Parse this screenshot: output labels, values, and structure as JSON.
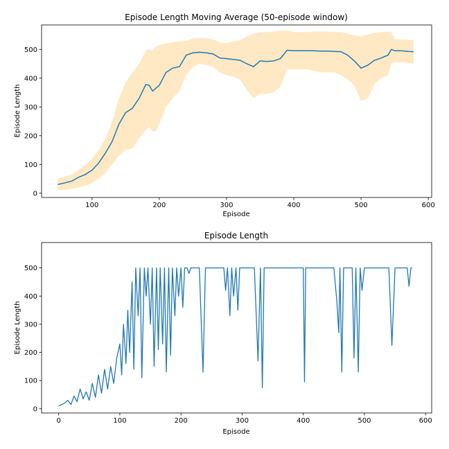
{
  "chart_data": [
    {
      "type": "line",
      "title": "Episode Length Moving Average (50-episode window)",
      "xlabel": "Episode",
      "ylabel": "Episode Length",
      "xlim": [
        25,
        605
      ],
      "ylim": [
        -15,
        585
      ],
      "xticks": [
        100,
        200,
        300,
        400,
        500,
        600
      ],
      "yticks": [
        0,
        100,
        200,
        300,
        400,
        500
      ],
      "line_color": "#1f77b4",
      "band_color": "#ffe8c2",
      "x": [
        49,
        60,
        70,
        80,
        90,
        100,
        110,
        120,
        130,
        140,
        150,
        160,
        170,
        180,
        185,
        190,
        195,
        200,
        210,
        220,
        230,
        240,
        250,
        260,
        270,
        280,
        290,
        300,
        310,
        320,
        330,
        340,
        350,
        360,
        370,
        380,
        390,
        400,
        410,
        420,
        430,
        440,
        450,
        460,
        470,
        480,
        490,
        500,
        510,
        520,
        530,
        540,
        545,
        550,
        560,
        570,
        578
      ],
      "mean": [
        30,
        36,
        42,
        55,
        65,
        80,
        105,
        140,
        180,
        240,
        280,
        295,
        330,
        378,
        375,
        355,
        365,
        375,
        420,
        435,
        440,
        480,
        488,
        490,
        488,
        484,
        470,
        468,
        465,
        462,
        450,
        440,
        460,
        458,
        460,
        468,
        497,
        495,
        495,
        495,
        495,
        494,
        494,
        493,
        492,
        480,
        460,
        435,
        445,
        462,
        470,
        480,
        500,
        495,
        495,
        493,
        492
      ],
      "lower": [
        10,
        12,
        15,
        20,
        25,
        35,
        50,
        70,
        100,
        130,
        150,
        155,
        190,
        220,
        230,
        215,
        215,
        240,
        300,
        330,
        355,
        410,
        440,
        450,
        445,
        440,
        420,
        410,
        405,
        395,
        360,
        330,
        345,
        345,
        350,
        370,
        430,
        430,
        430,
        430,
        425,
        420,
        420,
        420,
        410,
        395,
        375,
        320,
        330,
        380,
        400,
        410,
        450,
        455,
        455,
        452,
        450
      ],
      "upper": [
        50,
        58,
        65,
        80,
        100,
        120,
        150,
        190,
        250,
        330,
        385,
        420,
        450,
        495,
        500,
        495,
        510,
        515,
        520,
        525,
        528,
        530,
        538,
        540,
        538,
        535,
        525,
        522,
        528,
        532,
        545,
        555,
        560,
        560,
        562,
        565,
        565,
        560,
        560,
        560,
        562,
        562,
        562,
        560,
        560,
        555,
        548,
        545,
        552,
        558,
        560,
        562,
        560,
        535,
        535,
        534,
        532
      ]
    },
    {
      "type": "line",
      "title": "Episode Length",
      "xlabel": "Episode",
      "ylabel": "Episode Length",
      "xlim": [
        -28,
        610
      ],
      "ylim": [
        -15,
        590
      ],
      "xticks": [
        0,
        100,
        200,
        300,
        400,
        500,
        600
      ],
      "yticks": [
        0,
        100,
        200,
        300,
        400,
        500
      ],
      "line_color": "#1f77b4",
      "x": [
        0,
        10,
        15,
        20,
        25,
        30,
        35,
        40,
        45,
        50,
        55,
        60,
        65,
        70,
        75,
        80,
        85,
        90,
        95,
        100,
        103,
        106,
        110,
        113,
        116,
        120,
        123,
        126,
        130,
        133,
        136,
        140,
        143,
        146,
        150,
        153,
        156,
        160,
        163,
        166,
        170,
        173,
        176,
        180,
        183,
        186,
        190,
        193,
        196,
        200,
        203,
        206,
        210,
        213,
        216,
        220,
        230,
        236,
        240,
        250,
        260,
        270,
        273,
        276,
        280,
        283,
        286,
        290,
        293,
        296,
        300,
        310,
        320,
        326,
        330,
        333,
        336,
        340,
        350,
        360,
        370,
        380,
        390,
        400,
        402,
        404,
        410,
        420,
        430,
        440,
        450,
        455,
        458,
        460,
        463,
        466,
        470,
        480,
        483,
        486,
        490,
        493,
        496,
        500,
        510,
        520,
        530,
        540,
        545,
        550,
        560,
        570,
        573,
        576,
        578
      ],
      "values": [
        10,
        20,
        30,
        15,
        45,
        25,
        70,
        35,
        60,
        30,
        90,
        40,
        120,
        55,
        140,
        70,
        150,
        90,
        180,
        230,
        120,
        300,
        160,
        350,
        200,
        450,
        140,
        500,
        330,
        500,
        110,
        500,
        400,
        500,
        300,
        500,
        150,
        500,
        210,
        500,
        230,
        500,
        130,
        500,
        190,
        500,
        330,
        500,
        400,
        500,
        360,
        500,
        500,
        480,
        500,
        500,
        500,
        130,
        500,
        500,
        500,
        500,
        420,
        500,
        330,
        500,
        400,
        500,
        350,
        500,
        500,
        500,
        500,
        170,
        500,
        75,
        500,
        500,
        500,
        500,
        500,
        500,
        500,
        500,
        95,
        500,
        500,
        500,
        500,
        500,
        500,
        380,
        270,
        500,
        130,
        500,
        500,
        500,
        180,
        500,
        130,
        500,
        420,
        500,
        500,
        500,
        500,
        500,
        225,
        500,
        500,
        500,
        435,
        500,
        500
      ]
    }
  ]
}
